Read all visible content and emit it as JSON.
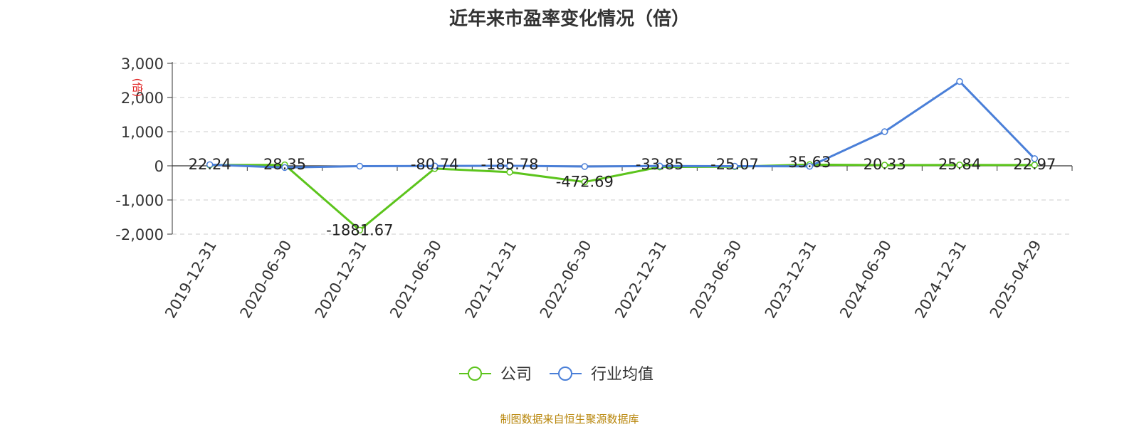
{
  "chart_data": {
    "type": "line",
    "title": "近年来市盈率变化情况（倍）",
    "ylabel": "(倍)",
    "ylim": [
      -2000,
      3000
    ],
    "yticks": [
      3000,
      2000,
      1000,
      0,
      -1000,
      -2000
    ],
    "ytick_labels": [
      "3,000",
      "2,000",
      "1,000",
      "0",
      "-1,000",
      "-2,000"
    ],
    "grid": true,
    "legend_position": "bottom-center",
    "x": [
      "2019-12-31",
      "2020-06-30",
      "2020-12-31",
      "2021-06-30",
      "2021-12-31",
      "2022-06-30",
      "2022-12-31",
      "2023-06-30",
      "2023-12-31",
      "2024-06-30",
      "2024-12-31",
      "2025-04-29"
    ],
    "series": [
      {
        "name": "公司",
        "color": "#5cc41c",
        "values": [
          22.24,
          28.35,
          -1881.67,
          -80.74,
          -185.78,
          -472.69,
          -33.85,
          -25.07,
          35.63,
          20.33,
          25.84,
          22.97
        ],
        "labels": [
          "22.24",
          "28.35",
          "-1881.67",
          "-80.74",
          "-185.78",
          "-472.69",
          "-33.85",
          "-25.07",
          "35.63",
          "20.33",
          "25.84",
          "22.97"
        ]
      },
      {
        "name": "行业均值",
        "color": "#4a7fd8",
        "values": [
          35,
          -50,
          -10,
          -5,
          0,
          -20,
          -5,
          -10,
          -15,
          1000,
          2470,
          210
        ]
      }
    ]
  },
  "footer": {
    "source": "制图数据来自恒生聚源数据库"
  }
}
